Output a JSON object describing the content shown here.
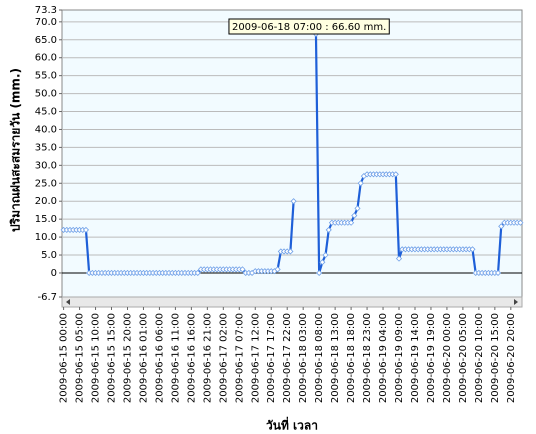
{
  "chart_data": {
    "type": "line",
    "y_label": "ปริมาณฝนสะสมรายวัน  (mm.)",
    "x_label": "วันที่ เวลา",
    "annotation": "2009-06-18 07:00 : 66.60 mm.",
    "annotation_index": 79,
    "color": "#1e5fd8",
    "grid": true,
    "ylim": [
      -6.7,
      73.3
    ],
    "yticks": [
      -6.7,
      0,
      {
        "value": 5,
        "label": "5.0"
      },
      {
        "value": 10,
        "label": "10.0"
      },
      {
        "value": 15,
        "label": "15.0"
      },
      {
        "value": 20,
        "label": "20.0"
      },
      {
        "value": 25,
        "label": "25.0"
      },
      {
        "value": 30,
        "label": "30.0"
      },
      {
        "value": 35,
        "label": "35.0"
      },
      {
        "value": 40,
        "label": "40.0"
      },
      {
        "value": 45,
        "label": "45.0"
      },
      {
        "value": 50,
        "label": "50.0"
      },
      {
        "value": 55,
        "label": "55.0"
      },
      {
        "value": 60,
        "label": "60.0"
      },
      {
        "value": 65,
        "label": "65.0"
      },
      {
        "value": 70,
        "label": "70.0"
      },
      73.3
    ],
    "categories": [
      "2009-06-15 00:00",
      null,
      null,
      null,
      null,
      "2009-06-15 05:00",
      null,
      null,
      null,
      null,
      "2009-06-15 10:00",
      null,
      null,
      null,
      null,
      "2009-06-15 15:00",
      null,
      null,
      null,
      null,
      "2009-06-15 20:00",
      null,
      null,
      null,
      null,
      "2009-06-16 01:00",
      null,
      null,
      null,
      null,
      "2009-06-16 06:00",
      null,
      null,
      null,
      null,
      "2009-06-16 11:00",
      null,
      null,
      null,
      null,
      "2009-06-16 16:00",
      null,
      null,
      null,
      null,
      "2009-06-16 21:00",
      null,
      null,
      null,
      null,
      "2009-06-17 02:00",
      null,
      null,
      null,
      null,
      "2009-06-17 07:00",
      null,
      null,
      null,
      null,
      "2009-06-17 12:00",
      null,
      null,
      null,
      null,
      "2009-06-17 17:00",
      null,
      null,
      null,
      null,
      "2009-06-17 22:00",
      null,
      null,
      null,
      null,
      "2009-06-18 03:00",
      null,
      null,
      null,
      null,
      "2009-06-18 08:00",
      null,
      null,
      null,
      null,
      "2009-06-18 13:00",
      null,
      null,
      null,
      null,
      "2009-06-18 18:00",
      null,
      null,
      null,
      null,
      "2009-06-18 23:00",
      null,
      null,
      null,
      null,
      "2009-06-19 04:00",
      null,
      null,
      null,
      null,
      "2009-06-19 09:00",
      null,
      null,
      null,
      null,
      "2009-06-19 14:00",
      null,
      null,
      null,
      null,
      "2009-06-19 19:00",
      null,
      null,
      null,
      null,
      "2009-06-20 00:00",
      null,
      null,
      null,
      null,
      "2009-06-20 05:00",
      null,
      null,
      null,
      null,
      "2009-06-20 10:00",
      null,
      null,
      null,
      null,
      "2009-06-20 15:00",
      null,
      null,
      null,
      null,
      "2009-06-20 20:00",
      null,
      null,
      null
    ],
    "values": [
      12,
      12,
      12,
      12,
      12,
      12,
      12,
      12,
      0,
      0,
      0,
      0,
      0,
      0,
      0,
      0,
      0,
      0,
      0,
      0,
      0,
      0,
      0,
      0,
      0,
      0,
      0,
      0,
      0,
      0,
      0,
      0,
      0,
      0,
      0,
      0,
      0,
      0,
      0,
      0,
      0,
      0,
      0,
      1,
      1,
      1,
      1,
      1,
      1,
      1,
      1,
      1,
      1,
      1,
      1,
      1,
      1,
      0,
      0,
      0,
      0.5,
      0.5,
      0.5,
      0.5,
      0.5,
      0.5,
      0.5,
      1,
      6,
      6,
      6,
      6,
      20,
      null,
      null,
      null,
      null,
      null,
      null,
      66.6,
      0,
      3,
      5,
      12,
      14,
      14,
      14,
      14,
      14,
      14,
      14,
      16,
      18,
      25,
      27,
      27.5,
      27.5,
      27.5,
      27.5,
      27.5,
      27.5,
      27.5,
      27.5,
      27.5,
      27.5,
      4,
      6.6,
      6.6,
      6.6,
      6.6,
      6.6,
      6.6,
      6.6,
      6.6,
      6.6,
      6.6,
      6.6,
      6.6,
      6.6,
      6.6,
      6.6,
      6.6,
      6.6,
      6.6,
      6.6,
      6.6,
      6.6,
      6.6,
      6.6,
      0,
      0,
      0,
      0,
      0,
      0,
      0,
      0,
      13,
      14,
      14,
      14,
      14,
      14,
      14
    ]
  }
}
